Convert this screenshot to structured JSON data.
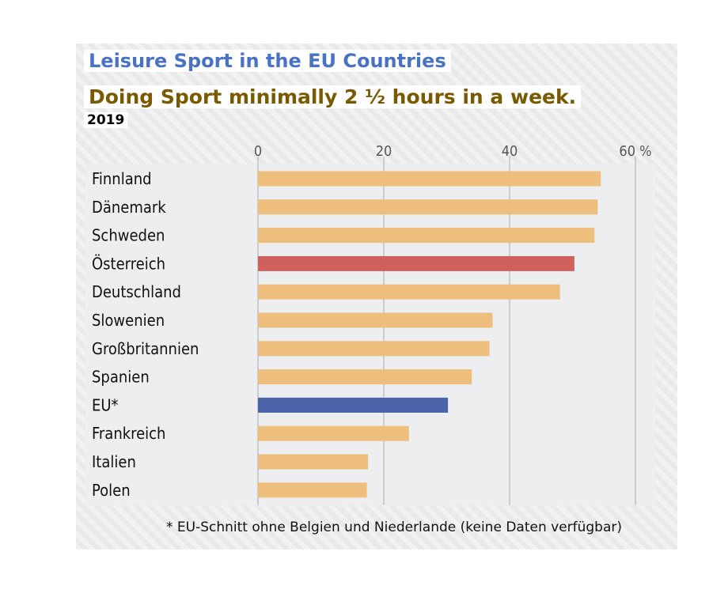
{
  "header": {
    "title": "Leisure Sport in the EU Countries",
    "subtitle": "Doing Sport minimally 2 ½ hours in a week.",
    "year": "2019"
  },
  "footnote": "* EU-Schnitt ohne Belgien und Niederlande (keine Daten verfügbar)",
  "colors": {
    "default_bar": "#edbe7c",
    "highlight_bar": "#d0605e",
    "eu_bar": "#4a63a8",
    "gridline": "#aaaaaa",
    "label_text": "#111111",
    "tick_text": "#555555"
  },
  "chart_data": {
    "type": "bar",
    "orientation": "horizontal",
    "title": "Leisure Sport in the EU Countries",
    "subtitle": "Doing Sport minimally 2 ½ hours in a week.",
    "note": "2019",
    "categories": [
      "Finnland",
      "Dänemark",
      "Schweden",
      "Österreich",
      "Deutschland",
      "Slowenien",
      "Großbritannien",
      "Spanien",
      "EU*",
      "Frankreich",
      "Italien",
      "Polen"
    ],
    "values": [
      54.5,
      54,
      53.5,
      50.3,
      48,
      37.3,
      36.8,
      34,
      30.2,
      24,
      17.5,
      17.3
    ],
    "highlight": {
      "Österreich": "highlight_bar",
      "EU*": "eu_bar"
    },
    "xticks": [
      0,
      20,
      40,
      60
    ],
    "xtick_labels": [
      "0",
      "20",
      "40",
      "60 %"
    ],
    "xlim": [
      0,
      60
    ],
    "grid": true
  }
}
